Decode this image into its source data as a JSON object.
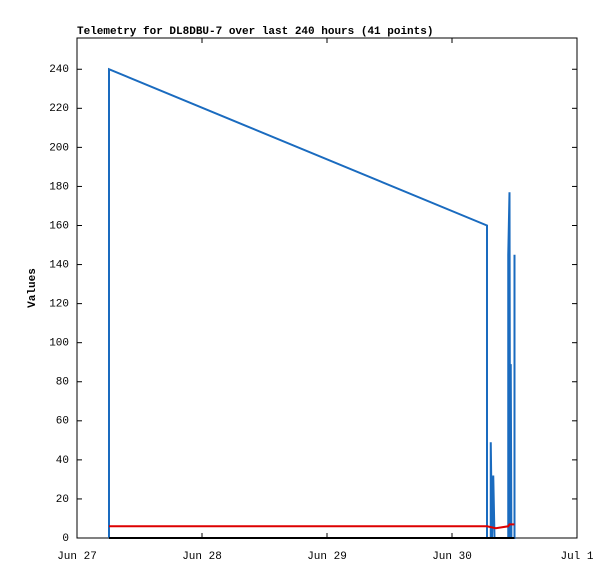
{
  "chart_data": {
    "type": "line",
    "title": "Telemetry for DL8DBU-7 over last 240 hours (41 points)",
    "y_label": "Values",
    "xlim": [
      0,
      4
    ],
    "xticks": [
      {
        "value": 0,
        "label": "Jun 27"
      },
      {
        "value": 1,
        "label": "Jun 28"
      },
      {
        "value": 2,
        "label": "Jun 29"
      },
      {
        "value": 3,
        "label": "Jun 30"
      },
      {
        "value": 4,
        "label": "Jul 1"
      }
    ],
    "ylim": [
      0,
      256
    ],
    "yticks": [
      0,
      20,
      40,
      60,
      80,
      100,
      120,
      140,
      160,
      180,
      200,
      220,
      240
    ],
    "series": [
      {
        "color": "#1a6bbf",
        "x": [
          0.256,
          0.256,
          3.28,
          3.28,
          3.31,
          3.31,
          3.32,
          3.33,
          3.34,
          3.45,
          3.45,
          3.46,
          3.465,
          3.47,
          3.475,
          3.5,
          3.5,
          3.5
        ],
        "values": [
          0,
          240,
          160,
          0,
          0,
          49,
          0,
          32,
          0,
          0,
          145,
          177,
          0,
          89,
          0,
          0,
          145,
          0
        ]
      },
      {
        "color": "#dd0000",
        "x": [
          0.256,
          3.28,
          3.35,
          3.45,
          3.46,
          3.5
        ],
        "values": [
          6,
          6,
          5,
          6,
          7,
          7
        ]
      },
      {
        "color": "#000000",
        "x": [
          0.256,
          3.5
        ],
        "values": [
          0,
          0
        ]
      }
    ]
  }
}
